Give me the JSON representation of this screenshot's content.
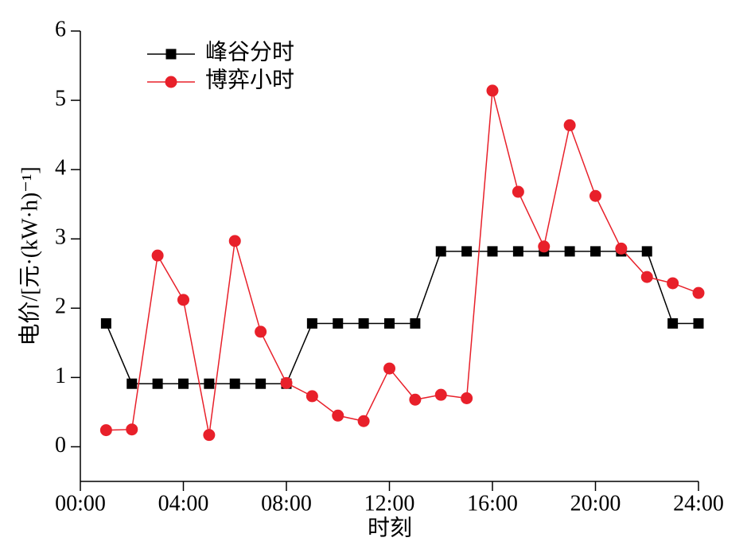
{
  "chart_data": {
    "type": "line",
    "x_label": "时刻",
    "y_label": "电价/[元·(kW·h)⁻¹]",
    "x": [
      1,
      2,
      3,
      4,
      5,
      6,
      7,
      8,
      9,
      10,
      11,
      12,
      13,
      14,
      15,
      16,
      17,
      18,
      19,
      20,
      21,
      22,
      23,
      24
    ],
    "series": [
      {
        "name": "峰谷分时",
        "color": "#000000",
        "marker": "square",
        "values": [
          1.78,
          0.91,
          0.91,
          0.91,
          0.91,
          0.91,
          0.91,
          0.91,
          1.78,
          1.78,
          1.78,
          1.78,
          1.78,
          2.82,
          2.82,
          2.82,
          2.82,
          2.82,
          2.82,
          2.82,
          2.82,
          2.82,
          1.78,
          1.78
        ]
      },
      {
        "name": "博弈小时",
        "color": "#e8202a",
        "marker": "circle",
        "values": [
          0.24,
          0.25,
          2.76,
          2.12,
          0.17,
          2.97,
          1.66,
          0.92,
          0.73,
          0.45,
          0.37,
          1.13,
          0.68,
          0.75,
          0.7,
          5.14,
          3.68,
          2.89,
          4.64,
          3.62,
          2.86,
          2.45,
          2.36,
          2.22
        ]
      }
    ],
    "xlim": [
      0,
      24
    ],
    "xticks": [
      {
        "value": 0,
        "label": "00:00"
      },
      {
        "value": 4,
        "label": "04:00"
      },
      {
        "value": 8,
        "label": "08:00"
      },
      {
        "value": 12,
        "label": "12:00"
      },
      {
        "value": 16,
        "label": "16:00"
      },
      {
        "value": 20,
        "label": "20:00"
      },
      {
        "value": 24,
        "label": "24:00"
      }
    ],
    "ylim": [
      -0.5,
      6
    ],
    "yticks": [
      0,
      1,
      2,
      3,
      4,
      5,
      6
    ],
    "legend": "upper-left",
    "grid": false
  }
}
